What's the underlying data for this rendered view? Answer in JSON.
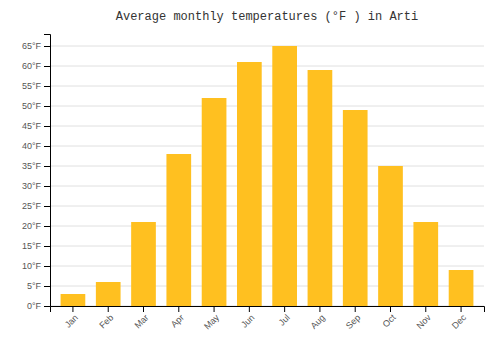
{
  "chart_data": {
    "type": "bar",
    "title": "Average monthly temperatures (°F ) in Arti",
    "categories": [
      "Jan",
      "Feb",
      "Mar",
      "Apr",
      "May",
      "Jun",
      "Jul",
      "Aug",
      "Sep",
      "Oct",
      "Nov",
      "Dec"
    ],
    "values": [
      3,
      6,
      21,
      38,
      52,
      61,
      65,
      59,
      49,
      35,
      21,
      9
    ],
    "color": "#FFC020",
    "ylim": [
      0,
      68
    ],
    "yticks": [
      {
        "value": 0,
        "label": "0°F"
      },
      {
        "value": 5,
        "label": "5°F"
      },
      {
        "value": 10,
        "label": "10°F"
      },
      {
        "value": 15,
        "label": "15°F"
      },
      {
        "value": 20,
        "label": "20°F"
      },
      {
        "value": 25,
        "label": "25°F"
      },
      {
        "value": 30,
        "label": "30°F"
      },
      {
        "value": 35,
        "label": "35°F"
      },
      {
        "value": 40,
        "label": "40°F"
      },
      {
        "value": 45,
        "label": "45°F"
      },
      {
        "value": 50,
        "label": "50°F"
      },
      {
        "value": 55,
        "label": "55°F"
      },
      {
        "value": 60,
        "label": "60°F"
      },
      {
        "value": 65,
        "label": "65°F"
      }
    ],
    "grid": true
  }
}
